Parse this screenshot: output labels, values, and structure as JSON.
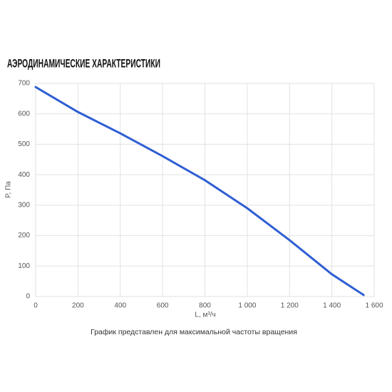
{
  "chart_data": {
    "type": "line",
    "title": "АЭРОДИНАМИЧЕСКИЕ ХАРАКТЕРИСТИКИ",
    "xlabel": "L, м³/ч",
    "ylabel": "P, Па",
    "note": "График представлен для максимальной частоты вращения",
    "x": [
      0,
      200,
      400,
      600,
      800,
      1000,
      1200,
      1400,
      1550
    ],
    "series": [
      {
        "name": "P",
        "color": "#2f5fd3",
        "values": [
          688,
          606,
          536,
          461,
          382,
          290,
          185,
          73,
          5
        ]
      }
    ],
    "xlim": [
      0,
      1600
    ],
    "xticks": [
      0,
      200,
      400,
      600,
      800,
      {
        "value": 1000,
        "label": "1 000"
      },
      {
        "value": 1200,
        "label": "1 200"
      },
      {
        "value": 1400,
        "label": "1 400"
      },
      {
        "value": 1600,
        "label": "1 600"
      }
    ],
    "ylim": [
      0,
      700
    ],
    "yticks": [
      0,
      100,
      200,
      300,
      400,
      500,
      600,
      700
    ],
    "grid": true
  }
}
